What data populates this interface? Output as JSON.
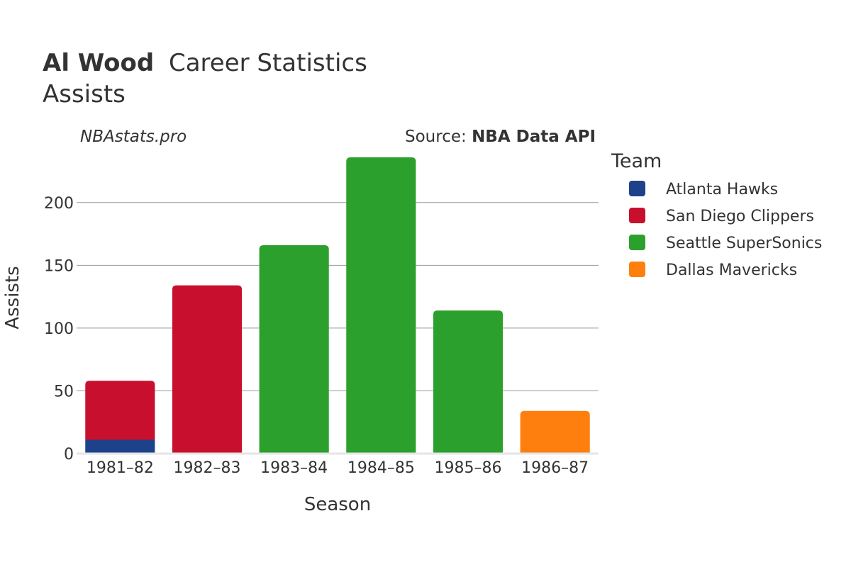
{
  "title": {
    "player": "Al Wood",
    "rest": "Career Statistics",
    "subtitle": "Assists"
  },
  "watermark": "NBAstats.pro",
  "source": {
    "prefix": "Source: ",
    "name": "NBA Data API"
  },
  "legend": {
    "title": "Team"
  },
  "chart_data": {
    "type": "bar",
    "stacked": true,
    "categories": [
      "1981–82",
      "1982–83",
      "1983–84",
      "1984–85",
      "1985–86",
      "1986–87"
    ],
    "series": [
      {
        "name": "Atlanta Hawks",
        "color": "#1d428a",
        "values": [
          11,
          0,
          0,
          0,
          0,
          0
        ]
      },
      {
        "name": "San Diego Clippers",
        "color": "#c8102e",
        "values": [
          47,
          134,
          0,
          0,
          0,
          0
        ]
      },
      {
        "name": "Seattle SuperSonics",
        "color": "#2ca02c",
        "values": [
          0,
          0,
          166,
          236,
          114,
          0
        ]
      },
      {
        "name": "Dallas Mavericks",
        "color": "#ff7f0e",
        "values": [
          0,
          0,
          0,
          0,
          0,
          34
        ]
      }
    ],
    "xlabel": "Season",
    "ylabel": "Assists",
    "ylim": [
      0,
      236
    ],
    "yticks": [
      0,
      50,
      100,
      150,
      200
    ],
    "grid": true,
    "legend_position": "right"
  }
}
